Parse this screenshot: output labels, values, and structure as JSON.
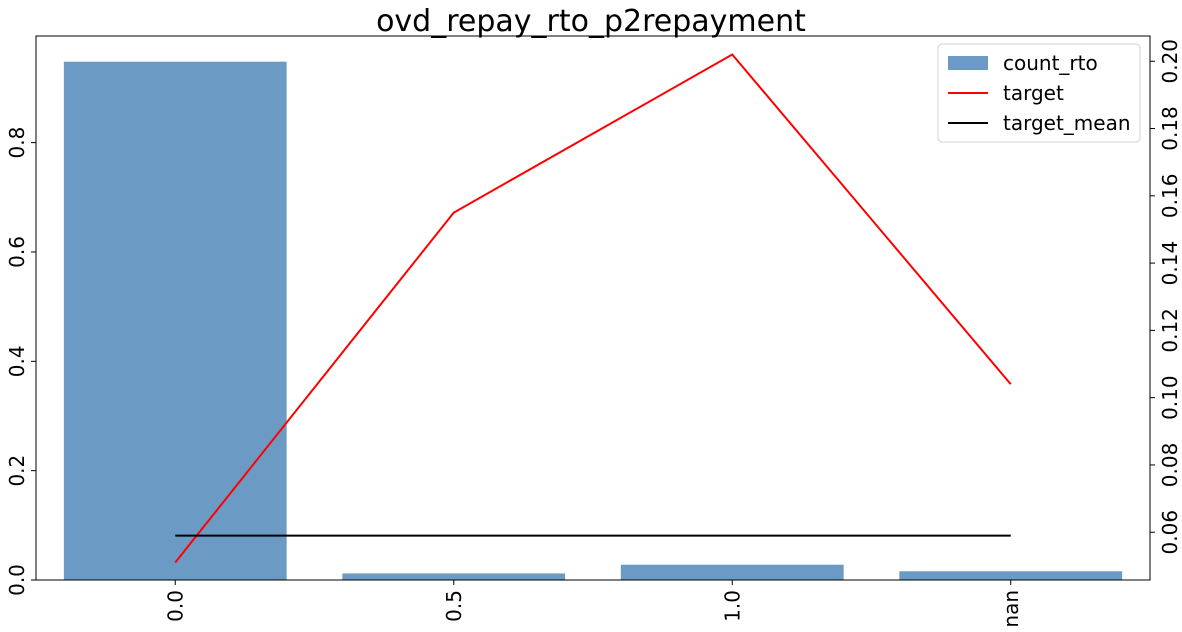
{
  "chart_data": {
    "type": "bar+line",
    "title": "ovd_repay_rto_p2repayment",
    "categories": [
      "0.0",
      "0.5",
      "1.0",
      "nan"
    ],
    "bars": {
      "name": "count_rto",
      "axis": "left",
      "values": [
        0.948,
        0.012,
        0.028,
        0.016
      ],
      "color": "#6b9bc4"
    },
    "lines": [
      {
        "name": "target",
        "axis": "right",
        "values": [
          0.051,
          0.155,
          0.202,
          0.104
        ],
        "color": "#ff0000"
      },
      {
        "name": "target_mean",
        "axis": "right",
        "values": [
          0.059,
          0.059,
          0.059,
          0.059
        ],
        "color": "#000000"
      }
    ],
    "left_axis": {
      "ylim": [
        0,
        0.995
      ],
      "ticks": [
        0.0,
        0.2,
        0.4,
        0.6,
        0.8
      ],
      "tick_labels": [
        "0.0",
        "0.2",
        "0.4",
        "0.6",
        "0.8"
      ]
    },
    "right_axis": {
      "ylim": [
        0.0458,
        0.2075
      ],
      "ticks": [
        0.06,
        0.08,
        0.1,
        0.12,
        0.14,
        0.16,
        0.18,
        0.2
      ],
      "tick_labels": [
        "0.06",
        "0.08",
        "0.10",
        "0.12",
        "0.14",
        "0.16",
        "0.18",
        "0.20"
      ]
    },
    "legend": {
      "placement": "top-right",
      "entries": [
        "count_rto",
        "target",
        "target_mean"
      ]
    },
    "grid": false
  }
}
